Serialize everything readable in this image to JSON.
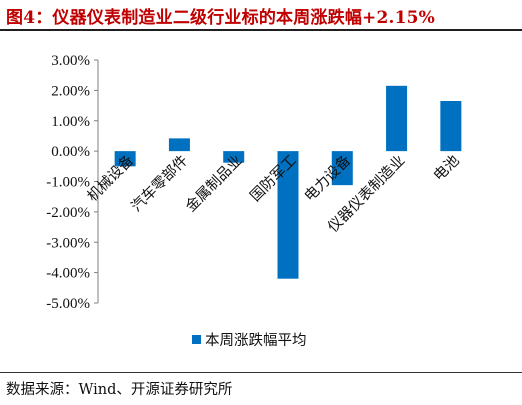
{
  "figure": {
    "title": "图4：仪器仪表制造业二级行业标的本周涨跌幅+2.15%",
    "source": "数据来源：Wind、开源证券研究所"
  },
  "chart_data": {
    "type": "bar",
    "categories": [
      "机械设备",
      "汽车零部件",
      "金属制品业",
      "国防军工",
      "电力设备",
      "仪器仪表制造业",
      "电池"
    ],
    "series": [
      {
        "name": "本周涨跌幅平均",
        "values": [
          -0.5,
          0.42,
          -0.38,
          -4.2,
          -1.12,
          2.15,
          1.65
        ]
      }
    ],
    "yticks": [
      "3.00%",
      "2.00%",
      "1.00%",
      "0.00%",
      "-1.00%",
      "-2.00%",
      "-3.00%",
      "-4.00%",
      "-5.00%"
    ],
    "ylim": [
      -5,
      3
    ],
    "bar_color": "#0070c0",
    "legend_position": "bottom"
  }
}
